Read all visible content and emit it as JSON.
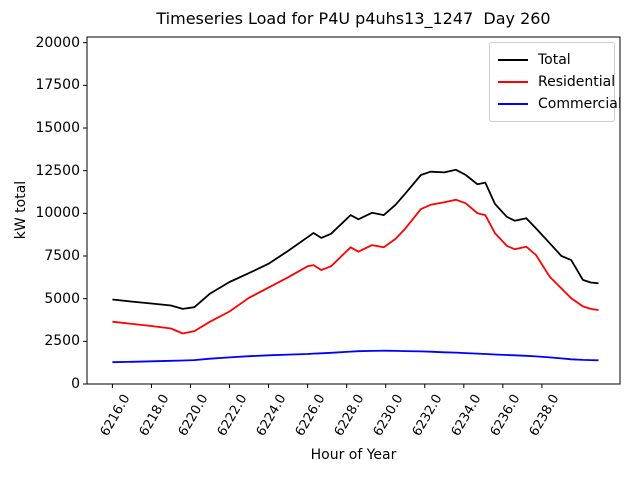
{
  "chart_data": {
    "type": "line",
    "title": "Timeseries Load for P4U p4uhs13_1247  Day 260",
    "xlabel": "Hour of Year",
    "ylabel": "kW total",
    "grid": false,
    "legend_position": "upper right",
    "xlim": [
      6214.7,
      6242.0
    ],
    "ylim": [
      0,
      20334
    ],
    "yticks": [
      0,
      2500,
      5000,
      7500,
      10000,
      12500,
      15000,
      17500,
      20000
    ],
    "xticks": [
      "6216.0",
      "6218.0",
      "6220.0",
      "6222.0",
      "6224.0",
      "6226.0",
      "6228.0",
      "6230.0",
      "6232.0",
      "6234.0",
      "6236.0",
      "6238.0"
    ],
    "x": [
      6216,
      6217,
      6218,
      6219,
      6219.6,
      6220.2,
      6221,
      6222,
      6223,
      6224,
      6225,
      6226,
      6226.3,
      6226.7,
      6227.2,
      6228.2,
      6228.6,
      6229.3,
      6229.9,
      6230.5,
      6231,
      6231.8,
      6232.3,
      6233,
      6233.6,
      6234.1,
      6234.7,
      6235.1,
      6235.6,
      6236.2,
      6236.6,
      6237.2,
      6237.7,
      6238.4,
      6239,
      6239.5,
      6240.1,
      6240.5,
      6240.9
    ],
    "series": [
      {
        "name": "Total",
        "color": "#000000",
        "values": [
          4950,
          4830,
          4720,
          4600,
          4400,
          4500,
          5300,
          5980,
          6500,
          7050,
          7800,
          8600,
          8850,
          8560,
          8800,
          9900,
          9650,
          10030,
          9900,
          10500,
          11150,
          12250,
          12440,
          12400,
          12550,
          12250,
          11700,
          11800,
          10550,
          9800,
          9570,
          9710,
          9120,
          8250,
          7500,
          7260,
          6100,
          5950,
          5900
        ]
      },
      {
        "name": "Residential",
        "color": "#ff0000",
        "values": [
          3650,
          3520,
          3400,
          3250,
          2960,
          3100,
          3650,
          4250,
          5050,
          5650,
          6250,
          6900,
          6970,
          6680,
          6900,
          8010,
          7750,
          8140,
          8010,
          8500,
          9100,
          10250,
          10500,
          10650,
          10800,
          10590,
          10000,
          9900,
          8830,
          8100,
          7900,
          8045,
          7560,
          6290,
          5600,
          5020,
          4550,
          4400,
          4330
        ]
      },
      {
        "name": "Commercial",
        "color": "#0000ff",
        "values": [
          1280,
          1300,
          1330,
          1360,
          1380,
          1400,
          1480,
          1560,
          1630,
          1680,
          1720,
          1760,
          1780,
          1800,
          1830,
          1900,
          1920,
          1940,
          1950,
          1940,
          1930,
          1910,
          1890,
          1860,
          1840,
          1810,
          1780,
          1760,
          1730,
          1700,
          1680,
          1650,
          1620,
          1560,
          1500,
          1450,
          1410,
          1400,
          1390
        ]
      }
    ]
  }
}
